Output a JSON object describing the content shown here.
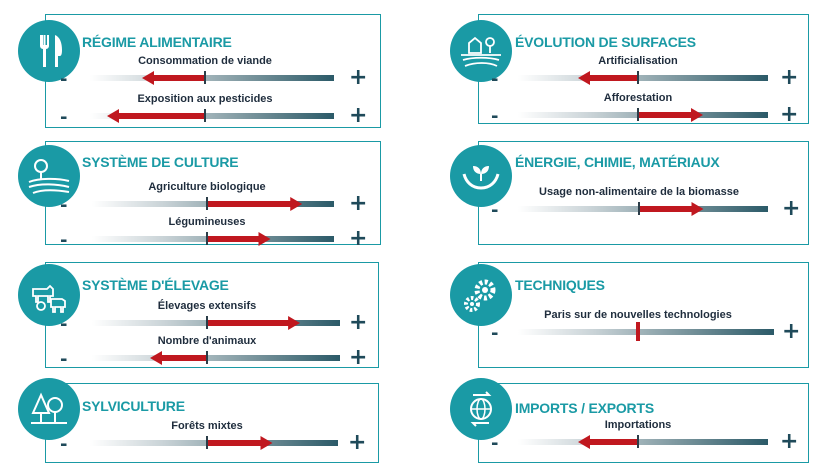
{
  "colors": {
    "teal": "#1a9aa5",
    "arrow_red": "#c0181f",
    "dark": "#1f2d3d"
  },
  "symbols": {
    "minus": "-",
    "plus": "+"
  },
  "panels": [
    {
      "id": "regime",
      "title": "RÉGIME ALIMENTAIRE",
      "icon": "fork-knife-icon",
      "indicators": [
        {
          "label": "Consommation de viande",
          "direction": "decrease",
          "magnitude": 0.55
        },
        {
          "label": "Exposition aux pesticides",
          "direction": "decrease",
          "magnitude": 0.85
        }
      ]
    },
    {
      "id": "culture",
      "title": "SYSTÈME DE CULTURE",
      "icon": "tree-field-icon",
      "indicators": [
        {
          "label": "Agriculture biologique",
          "direction": "increase",
          "magnitude": 0.75
        },
        {
          "label": "Légumineuses",
          "direction": "increase",
          "magnitude": 0.5
        }
      ]
    },
    {
      "id": "elevage",
      "title": "SYSTÈME D'ÉLEVAGE",
      "icon": "livestock-icon",
      "indicators": [
        {
          "label": "Élevages extensifs",
          "direction": "increase",
          "magnitude": 0.7
        },
        {
          "label": "Nombre d'animaux",
          "direction": "decrease",
          "magnitude": 0.5
        }
      ]
    },
    {
      "id": "sylviculture",
      "title": "SYLVICULTURE",
      "icon": "forest-icon",
      "indicators": [
        {
          "label": "Forêts mixtes",
          "direction": "increase",
          "magnitude": 0.5
        }
      ]
    },
    {
      "id": "surfaces",
      "title": "ÉVOLUTION DE SURFACES",
      "icon": "landscape-icon",
      "indicators": [
        {
          "label": "Artificialisation",
          "direction": "decrease",
          "magnitude": 0.5
        },
        {
          "label": "Afforestation",
          "direction": "increase",
          "magnitude": 0.5
        }
      ]
    },
    {
      "id": "energie",
      "title": "ÉNERGIE, CHIMIE, MATÉRIAUX",
      "icon": "hands-plant-icon",
      "indicators": [
        {
          "label": "Usage non-alimentaire de la biomasse",
          "direction": "increase",
          "magnitude": 0.5
        }
      ]
    },
    {
      "id": "techniques",
      "title": "TECHNIQUES",
      "icon": "gears-icon",
      "indicators": [
        {
          "label": "Paris sur de nouvelles technologies",
          "direction": "neutral",
          "magnitude": 0
        }
      ]
    },
    {
      "id": "imports",
      "title": "IMPORTS / EXPORTS",
      "icon": "globe-arrows-icon",
      "indicators": [
        {
          "label": "Importations",
          "direction": "decrease",
          "magnitude": 0.5
        }
      ]
    }
  ]
}
